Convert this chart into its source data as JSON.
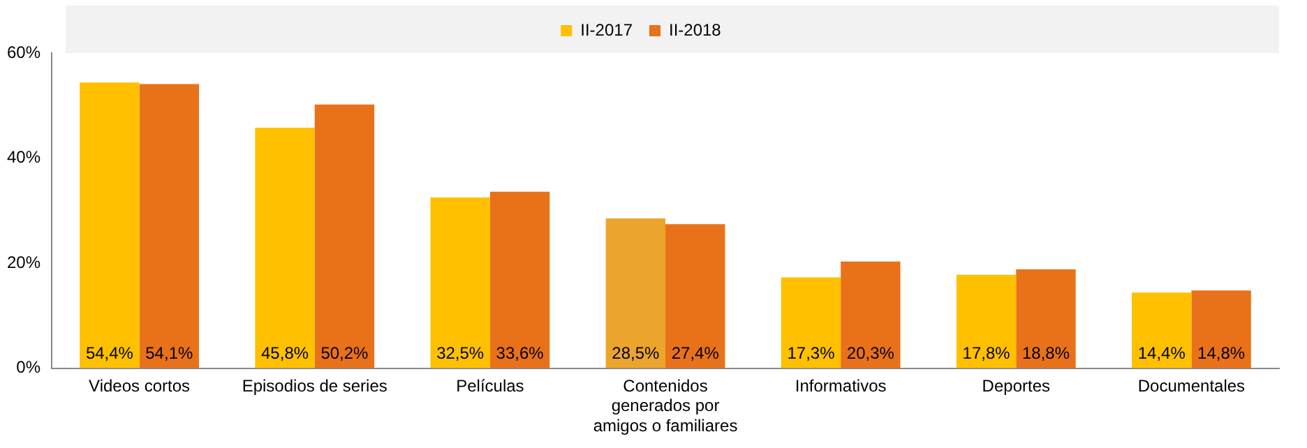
{
  "chart_data": {
    "type": "bar",
    "categories": [
      "Videos cortos",
      "Episodios de series",
      "Películas",
      "Contenidos generados por amigos o familiares",
      "Informativos",
      "Deportes",
      "Documentales"
    ],
    "series": [
      {
        "name": "II-2017",
        "color": "#ffc000",
        "colors": [
          "#ffc000",
          "#ffc000",
          "#ffc000",
          "#eba52c",
          "#ffc000",
          "#ffc000",
          "#ffc000"
        ],
        "values": [
          54.4,
          45.8,
          32.5,
          28.5,
          17.3,
          17.8,
          14.4
        ],
        "value_labels": [
          "54,4%",
          "45,8%",
          "32,5%",
          "28,5%",
          "17,3%",
          "17,8%",
          "14,4%"
        ]
      },
      {
        "name": "II-2018",
        "color": "#e97119",
        "values": [
          54.1,
          50.2,
          33.6,
          27.4,
          20.3,
          18.8,
          14.8
        ],
        "value_labels": [
          "54,1%",
          "50,2%",
          "33,6%",
          "27,4%",
          "20,3%",
          "18,8%",
          "14,8%"
        ]
      }
    ],
    "ylim": [
      0,
      60
    ],
    "yticks": [
      {
        "value": 0,
        "label": "0%"
      },
      {
        "value": 20,
        "label": "20%"
      },
      {
        "value": 40,
        "label": "40%"
      },
      {
        "value": 60,
        "label": "60%"
      }
    ],
    "grid": false,
    "legend": "top"
  }
}
